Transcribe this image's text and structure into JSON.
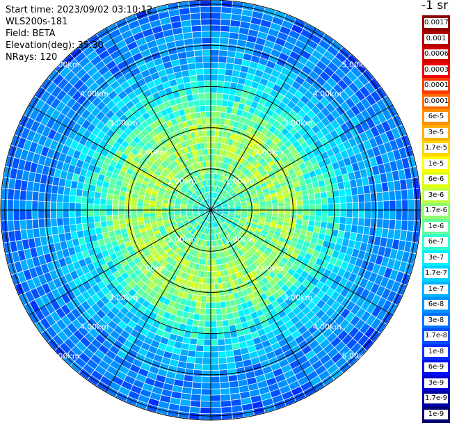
{
  "header": {
    "start_time": "Start time: 2023/09/02 03:10:12",
    "instrument": "WLS200s-181",
    "field": "Field: BETA",
    "elevation": "Elevation(deg): 35.30",
    "nrays": "NRays: 120"
  },
  "colorbar": {
    "unit": "-1 sr",
    "labels": [
      "0.0017",
      "0.001",
      "0.0006",
      "0.0003",
      "0.00017",
      "0.0001",
      "6e-5",
      "3e-5",
      "1.7e-5",
      "1e-5",
      "6e-6",
      "3e-6",
      "1.7e-6",
      "1e-6",
      "6e-7",
      "3e-7",
      "1.7e-7",
      "1e-7",
      "6e-8",
      "3e-8",
      "1.7e-8",
      "1e-8",
      "6e-9",
      "3e-9",
      "1.7e-9",
      "1e-9"
    ],
    "colors": [
      "#8b0000",
      "#b00000",
      "#d40000",
      "#f00000",
      "#ff3a00",
      "#ff6a00",
      "#ff9000",
      "#ffb000",
      "#ffd400",
      "#ffff00",
      "#e0ff10",
      "#c0ff40",
      "#90ff70",
      "#60ffa0",
      "#30ffd0",
      "#00f0ff",
      "#00d0ff",
      "#00b0ff",
      "#0090ff",
      "#0070ff",
      "#0050ff",
      "#0030ff",
      "#0010f0",
      "#0000d0",
      "#0000a0",
      "#000070"
    ]
  },
  "chart_data": {
    "type": "heatmap",
    "projection": "polar-ppi",
    "field": "BETA",
    "nrays": 120,
    "range_rings_km": [
      1,
      2,
      3,
      4,
      5
    ],
    "ring_labels": [
      "1.00km",
      "2.00km",
      "3.00km",
      "4.00km",
      "5.00km"
    ],
    "radial_lines": 12,
    "max_range_km": 5.1,
    "color_scale": "log",
    "value_range": [
      1e-09,
      0.0017
    ],
    "description_profile": [
      {
        "range_km": 0.0,
        "value": 3e-07
      },
      {
        "range_km": 1.0,
        "value": 1.5e-06
      },
      {
        "range_km": 2.0,
        "value": 2e-06
      },
      {
        "range_km": 3.0,
        "value": 3e-07
      },
      {
        "range_km": 4.0,
        "value": 6e-08
      },
      {
        "range_km": 5.1,
        "value": 3e-08
      }
    ]
  }
}
